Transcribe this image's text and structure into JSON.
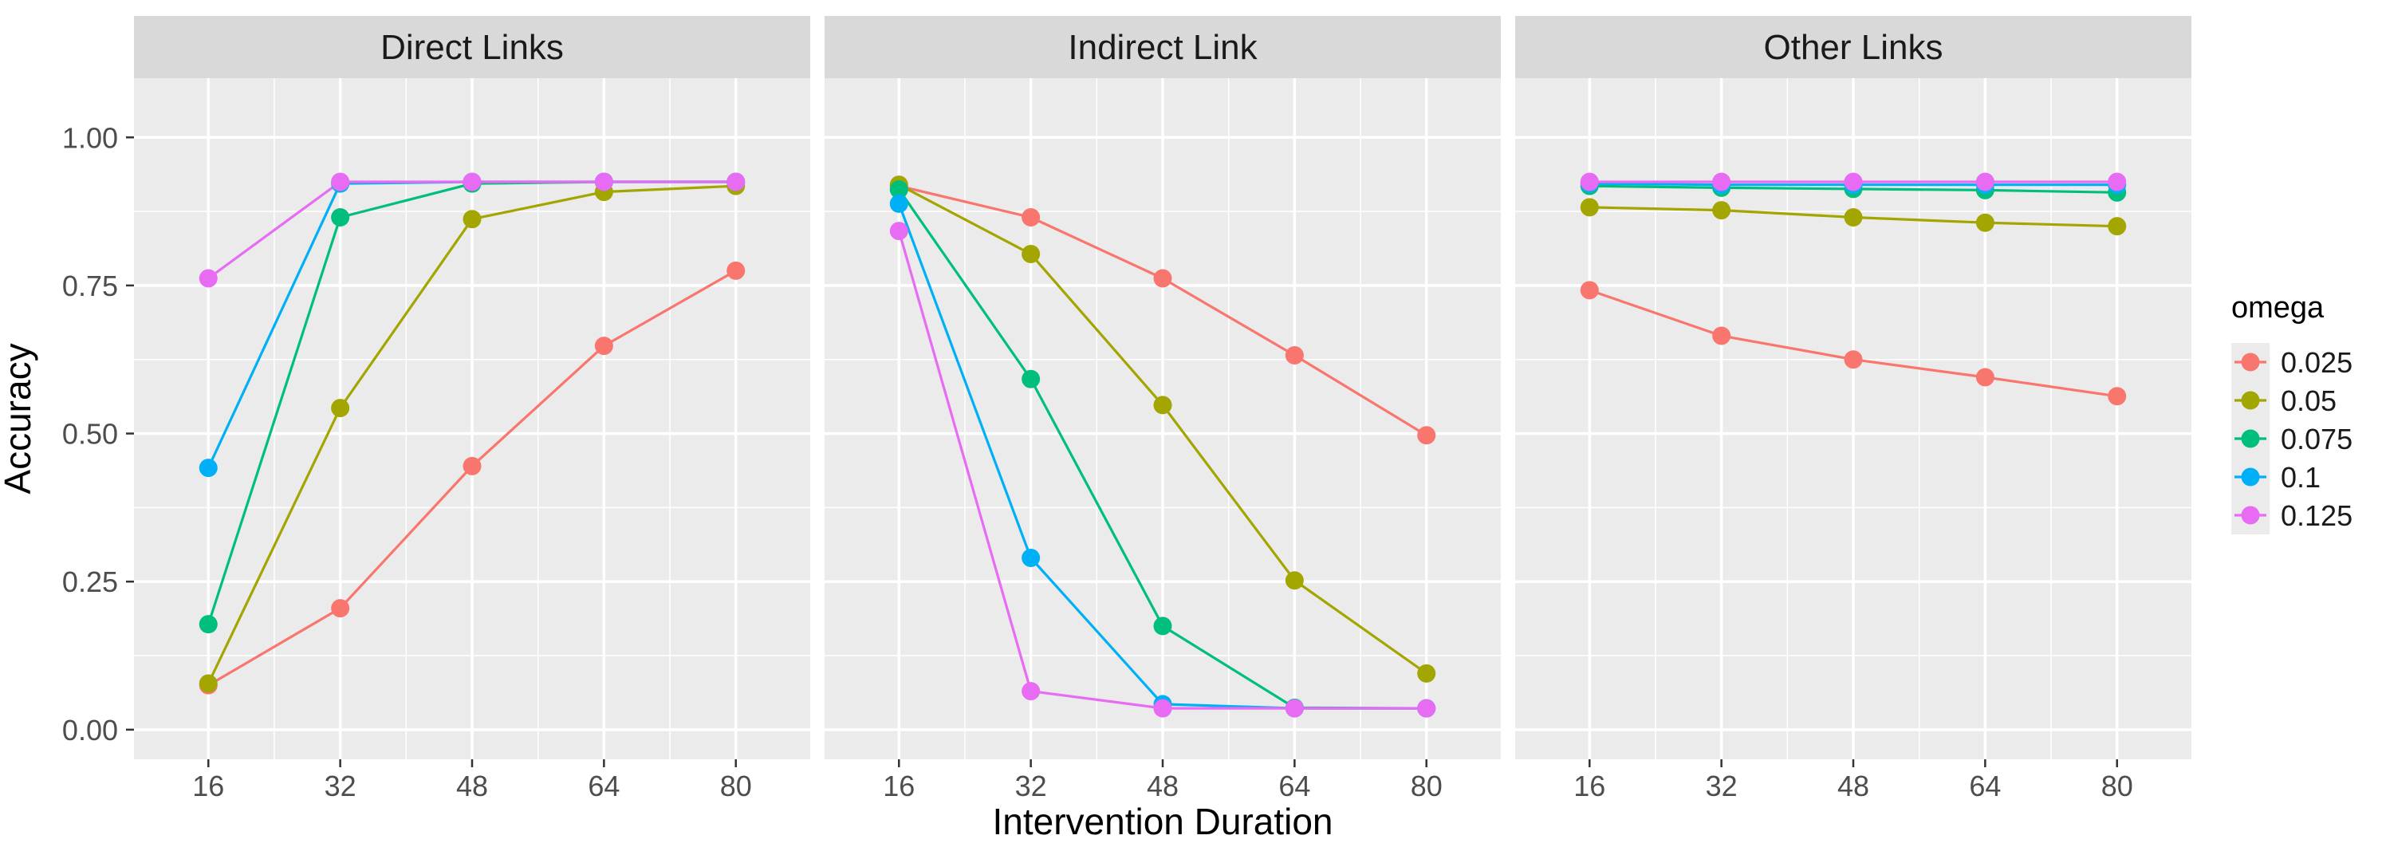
{
  "colors": {
    "panel_bg": "#EBEBEB",
    "strip_bg": "#D9D9D9",
    "grid_major": "#FFFFFF",
    "axis_text": "#4D4D4D",
    "title_text": "#000000"
  },
  "chart_data": {
    "type": "line",
    "facet_by": "link type",
    "xlabel": "Intervention Duration",
    "ylabel": "Accuracy",
    "x": [
      16,
      32,
      48,
      64,
      80
    ],
    "x_ticks": [
      "16",
      "32",
      "48",
      "64",
      "80"
    ],
    "ylim": [
      -0.05,
      1.1
    ],
    "y_ticks": [
      0,
      0.25,
      0.5,
      0.75,
      1
    ],
    "y_tick_labels": [
      "0.00",
      "0.25",
      "0.50",
      "0.75",
      "1.00"
    ],
    "legend": {
      "title": "omega",
      "position": "right",
      "entries": [
        {
          "label": "0.025",
          "color": "#F8766D"
        },
        {
          "label": "0.05",
          "color": "#A3A500"
        },
        {
          "label": "0.075",
          "color": "#00BF7D"
        },
        {
          "label": "0.1",
          "color": "#00B0F6"
        },
        {
          "label": "0.125",
          "color": "#E76BF3"
        }
      ]
    },
    "panels": [
      {
        "title": "Direct Links",
        "series": [
          {
            "name": "0.025",
            "values": [
              0.075,
              0.205,
              0.445,
              0.648,
              0.775
            ]
          },
          {
            "name": "0.05",
            "values": [
              0.078,
              0.543,
              0.862,
              0.908,
              0.918
            ]
          },
          {
            "name": "0.075",
            "values": [
              0.178,
              0.865,
              0.922,
              0.925,
              0.925
            ]
          },
          {
            "name": "0.1",
            "values": [
              0.442,
              0.922,
              0.925,
              0.925,
              0.925
            ]
          },
          {
            "name": "0.125",
            "values": [
              0.762,
              0.925,
              0.925,
              0.925,
              0.925
            ]
          }
        ]
      },
      {
        "title": "Indirect Link",
        "series": [
          {
            "name": "0.025",
            "values": [
              0.918,
              0.865,
              0.762,
              0.632,
              0.497
            ]
          },
          {
            "name": "0.05",
            "values": [
              0.92,
              0.803,
              0.548,
              0.252,
              0.095
            ]
          },
          {
            "name": "0.075",
            "values": [
              0.912,
              0.592,
              0.175,
              0.037,
              0.036
            ]
          },
          {
            "name": "0.1",
            "values": [
              0.888,
              0.29,
              0.043,
              0.036,
              0.036
            ]
          },
          {
            "name": "0.125",
            "values": [
              0.842,
              0.065,
              0.036,
              0.036,
              0.036
            ]
          }
        ]
      },
      {
        "title": "Other Links",
        "series": [
          {
            "name": "0.025",
            "values": [
              0.742,
              0.665,
              0.625,
              0.595,
              0.563
            ]
          },
          {
            "name": "0.05",
            "values": [
              0.882,
              0.877,
              0.865,
              0.856,
              0.85
            ]
          },
          {
            "name": "0.075",
            "values": [
              0.918,
              0.915,
              0.913,
              0.911,
              0.907
            ]
          },
          {
            "name": "0.1",
            "values": [
              0.922,
              0.92,
              0.92,
              0.92,
              0.92
            ]
          },
          {
            "name": "0.125",
            "values": [
              0.925,
              0.925,
              0.925,
              0.925,
              0.925
            ]
          }
        ]
      }
    ]
  }
}
